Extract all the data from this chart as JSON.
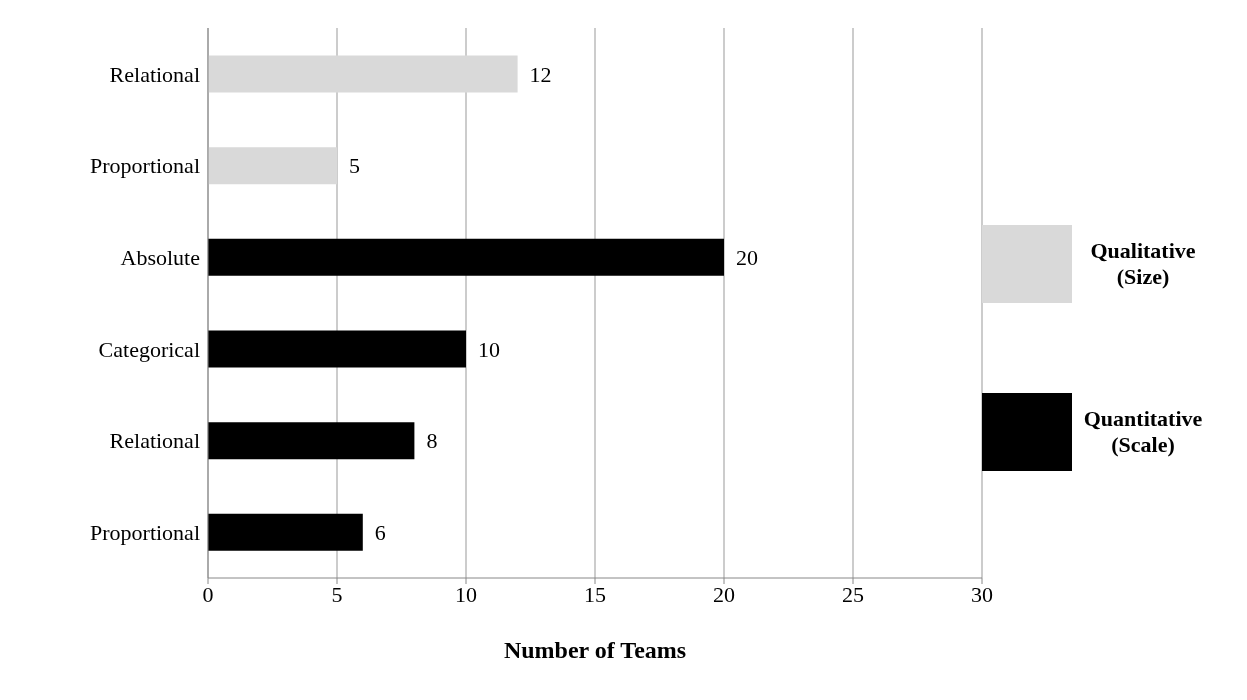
{
  "chart_data": {
    "type": "bar",
    "orientation": "horizontal",
    "stacked": true,
    "categories": [
      "Relational",
      "Proportional",
      "Absolute",
      "Categorical",
      "Relational",
      "Proportional"
    ],
    "series": [
      {
        "name": "Qualitative (Size)",
        "color": "#d9d9d9",
        "values": [
          12,
          5,
          null,
          null,
          null,
          null
        ]
      },
      {
        "name": "Quantitative (Scale)",
        "color": "#000000",
        "values": [
          null,
          null,
          20,
          10,
          8,
          6
        ]
      }
    ],
    "xlabel": "Number of Teams",
    "xlim": [
      0,
      30
    ],
    "xticks": [
      0,
      5,
      10,
      15,
      20,
      25,
      30
    ],
    "grid": "x",
    "legend": "right",
    "data_labels": true
  }
}
